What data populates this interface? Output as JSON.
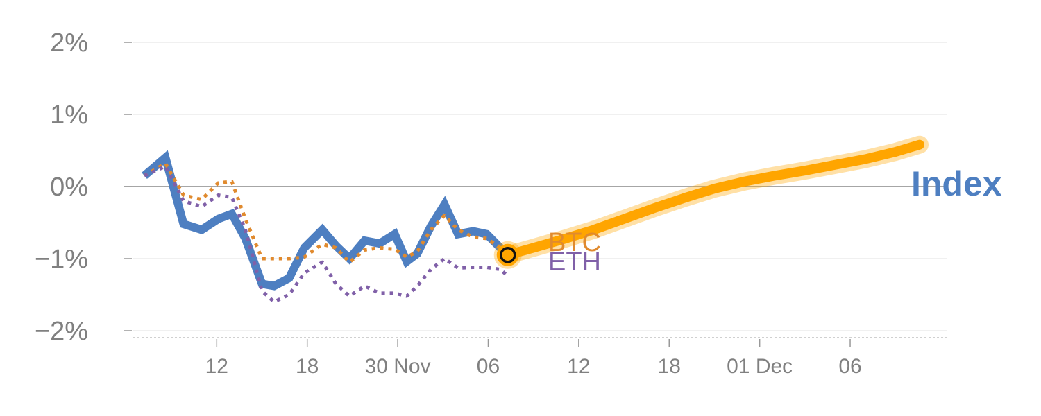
{
  "chart_data": {
    "type": "line",
    "title": "",
    "xlabel": "",
    "ylabel": "",
    "ylim": [
      -2,
      2
    ],
    "yticks": [
      2,
      1,
      0,
      -1,
      -2
    ],
    "ytick_labels": [
      "2%",
      "1%",
      "0%",
      "−1%",
      "−2%"
    ],
    "xticks": [
      12,
      18,
      24,
      30,
      36,
      42,
      48,
      54
    ],
    "xtick_labels": [
      "12",
      "18",
      "30 Nov",
      "06",
      "12",
      "18",
      "01 Dec",
      "06"
    ],
    "grid": true,
    "zero_line": true,
    "end_marker_x": 31.3,
    "end_marker_y": -0.95,
    "series": [
      {
        "name": "Index",
        "color": "#4e7fc1",
        "style": "solid",
        "x": [
          7.2,
          8.6,
          9.8,
          11.0,
          12.1,
          13.0,
          13.9,
          15.0,
          15.8,
          16.8,
          17.8,
          19.0,
          19.9,
          20.8,
          21.8,
          22.8,
          23.8,
          24.6,
          25.3,
          26.2,
          27.1,
          28.0,
          29.0,
          29.9,
          30.8,
          31.3
        ],
        "y": [
          0.15,
          0.4,
          -0.52,
          -0.6,
          -0.45,
          -0.38,
          -0.72,
          -1.35,
          -1.38,
          -1.27,
          -0.85,
          -0.6,
          -0.82,
          -1.0,
          -0.75,
          -0.79,
          -0.66,
          -1.04,
          -0.93,
          -0.55,
          -0.25,
          -0.66,
          -0.62,
          -0.66,
          -0.85,
          -0.95
        ]
      },
      {
        "name": "BTC",
        "color": "#e08a2e",
        "style": "dotted",
        "x": [
          7.2,
          8.6,
          9.8,
          11.0,
          12.1,
          13.0,
          13.9,
          15.0,
          15.8,
          16.8,
          17.8,
          19.0,
          19.9,
          20.8,
          21.8,
          22.8,
          23.8,
          24.6,
          25.3,
          26.2,
          27.1,
          28.0,
          29.0,
          29.9,
          30.8,
          31.3
        ],
        "y": [
          0.15,
          0.32,
          -0.12,
          -0.18,
          0.05,
          0.07,
          -0.45,
          -1.0,
          -1.0,
          -1.0,
          -0.98,
          -0.8,
          -0.85,
          -1.05,
          -0.88,
          -0.85,
          -0.87,
          -0.98,
          -0.9,
          -0.6,
          -0.4,
          -0.6,
          -0.7,
          -0.72,
          -0.85,
          -0.9
        ]
      },
      {
        "name": "ETH",
        "color": "#8060a8",
        "style": "dotted",
        "x": [
          7.2,
          8.6,
          9.8,
          11.0,
          12.1,
          13.0,
          13.9,
          15.0,
          15.8,
          16.8,
          17.8,
          19.0,
          19.9,
          20.8,
          21.8,
          22.8,
          23.8,
          24.6,
          25.3,
          26.2,
          27.1,
          28.0,
          29.0,
          29.9,
          30.8,
          31.3
        ],
        "y": [
          0.15,
          0.28,
          -0.2,
          -0.28,
          -0.12,
          -0.15,
          -0.6,
          -1.45,
          -1.6,
          -1.5,
          -1.2,
          -1.05,
          -1.35,
          -1.52,
          -1.38,
          -1.48,
          -1.48,
          -1.52,
          -1.38,
          -1.15,
          -1.0,
          -1.13,
          -1.12,
          -1.12,
          -1.15,
          -1.24
        ]
      },
      {
        "name": "",
        "color": "#ffa500",
        "style": "projection",
        "x": [
          31.3,
          33.0,
          35.0,
          37.0,
          39.0,
          41.0,
          43.0,
          45.0,
          47.0,
          49.0,
          51.0,
          53.0,
          55.0,
          57.0,
          58.6
        ],
        "y": [
          -0.95,
          -0.85,
          -0.73,
          -0.6,
          -0.45,
          -0.3,
          -0.16,
          -0.03,
          0.07,
          0.15,
          0.22,
          0.3,
          0.38,
          0.48,
          0.58
        ]
      }
    ]
  }
}
